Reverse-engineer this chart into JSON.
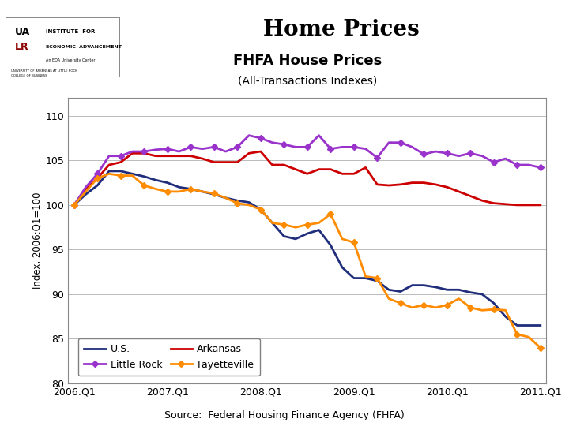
{
  "title": "FHFA House Prices",
  "subtitle": "(All-Transactions Indexes)",
  "ylabel": "Index, 2006:Q1=100",
  "source": "Source:  Federal Housing Finance Agency (FHFA)",
  "main_title": "Home Prices",
  "x_labels": [
    "2006:Q1",
    "2007:Q1",
    "2008:Q1",
    "2009:Q1",
    "2010:Q1",
    "2011:Q1"
  ],
  "ylim": [
    80,
    112
  ],
  "yticks": [
    80,
    85,
    90,
    95,
    100,
    105,
    110
  ],
  "series": {
    "US": {
      "label": "U.S.",
      "color": "#1F2D7B",
      "linewidth": 2.0,
      "marker": null,
      "values": [
        100.0,
        101.2,
        102.2,
        103.8,
        103.8,
        103.5,
        103.2,
        102.8,
        102.5,
        102.0,
        101.8,
        101.5,
        101.2,
        100.8,
        100.5,
        100.3,
        99.5,
        98.0,
        96.5,
        96.2,
        96.8,
        97.2,
        95.5,
        93.0,
        91.8,
        91.8,
        91.5,
        90.5,
        90.3,
        91.0,
        91.0,
        90.8,
        90.5,
        90.5,
        90.2,
        90.0,
        89.0,
        87.5,
        86.5,
        86.5,
        86.5
      ]
    },
    "Arkansas": {
      "label": "Arkansas",
      "color": "#CC0000",
      "linewidth": 2.0,
      "marker": null,
      "values": [
        100.0,
        101.8,
        103.0,
        104.5,
        104.8,
        105.8,
        105.8,
        105.5,
        105.5,
        105.5,
        105.5,
        105.2,
        104.8,
        104.8,
        104.8,
        105.8,
        106.0,
        104.5,
        104.5,
        104.0,
        103.5,
        104.0,
        104.0,
        103.5,
        103.5,
        104.2,
        102.3,
        102.2,
        102.3,
        102.5,
        102.5,
        102.3,
        102.0,
        101.5,
        101.0,
        100.5,
        100.2,
        100.1,
        100.0,
        100.0,
        100.0
      ]
    },
    "LittleRock": {
      "label": "Little Rock",
      "color": "#9933CC",
      "linewidth": 2.0,
      "marker": "D",
      "markersize": 4,
      "values": [
        100.0,
        102.0,
        103.5,
        105.5,
        105.5,
        106.0,
        106.0,
        106.2,
        106.3,
        106.0,
        106.5,
        106.3,
        106.5,
        106.0,
        106.5,
        107.8,
        107.5,
        107.0,
        106.8,
        106.5,
        106.5,
        107.8,
        106.3,
        106.5,
        106.5,
        106.3,
        105.3,
        107.0,
        107.0,
        106.5,
        105.7,
        106.0,
        105.8,
        105.5,
        105.8,
        105.5,
        104.8,
        105.2,
        104.5,
        104.5,
        104.2
      ]
    },
    "Fayetteville": {
      "label": "Fayetteville",
      "color": "#FF8C00",
      "linewidth": 2.0,
      "marker": "D",
      "markersize": 4,
      "values": [
        100.0,
        101.5,
        103.0,
        103.5,
        103.3,
        103.3,
        102.2,
        101.8,
        101.5,
        101.5,
        101.8,
        101.5,
        101.3,
        100.8,
        100.2,
        100.0,
        99.5,
        98.0,
        97.8,
        97.5,
        97.8,
        98.0,
        99.0,
        96.2,
        95.8,
        92.0,
        91.8,
        89.5,
        89.0,
        88.5,
        88.8,
        88.5,
        88.8,
        89.5,
        88.5,
        88.2,
        88.3,
        88.2,
        85.5,
        85.2,
        84.0
      ]
    }
  },
  "chart_bg": "#FFFFFF",
  "plot_bg": "#FFFFFF",
  "border_color": "#888888",
  "grid_color": "#BBBBBB"
}
